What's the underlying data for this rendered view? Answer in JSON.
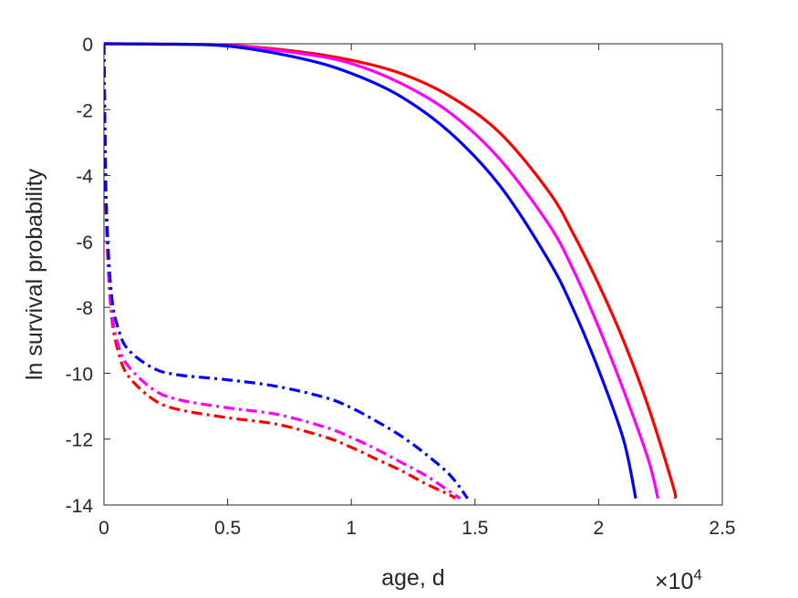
{
  "chart_data": {
    "type": "line",
    "title": "",
    "xlabel": "age, d",
    "ylabel": "ln survival probability",
    "x_exponent_label": {
      "base": "×10",
      "exponent": "4"
    },
    "xlim": [
      0,
      2.5
    ],
    "ylim": [
      -14,
      0
    ],
    "x_ticks": [
      "0",
      "0.5",
      "1",
      "1.5",
      "2",
      "2.5"
    ],
    "x_tick_values": [
      0,
      0.5,
      1,
      1.5,
      2,
      2.5
    ],
    "y_ticks": [
      "0",
      "-2",
      "-4",
      "-6",
      "-8",
      "-10",
      "-12",
      "-14"
    ],
    "y_tick_values": [
      0,
      -2,
      -4,
      -6,
      -8,
      -10,
      -12,
      -14
    ],
    "grid": false,
    "series": [
      {
        "color": "#ff0000",
        "style": "solid",
        "x": [
          0.0,
          0.2,
          0.5,
          0.8,
          1.0,
          1.2,
          1.4,
          1.6,
          1.8,
          1.9,
          2.0,
          2.1,
          2.2,
          2.3,
          2.31
        ],
        "y": [
          0.0,
          -0.01,
          -0.04,
          -0.25,
          -0.5,
          -0.9,
          -1.6,
          -2.7,
          -4.5,
          -5.8,
          -7.3,
          -9.0,
          -11.0,
          -13.4,
          -13.8
        ]
      },
      {
        "color": "#ff00ff",
        "style": "solid",
        "x": [
          0.0,
          0.2,
          0.5,
          0.8,
          1.0,
          1.2,
          1.4,
          1.6,
          1.8,
          1.9,
          2.0,
          2.1,
          2.2,
          2.24
        ],
        "y": [
          0.0,
          -0.01,
          -0.05,
          -0.3,
          -0.6,
          -1.2,
          -2.1,
          -3.5,
          -5.5,
          -6.9,
          -8.6,
          -10.5,
          -12.6,
          -13.8
        ]
      },
      {
        "color": "#0000ff",
        "style": "solid",
        "x": [
          0.0,
          0.2,
          0.5,
          0.8,
          1.0,
          1.2,
          1.4,
          1.6,
          1.8,
          1.9,
          2.0,
          2.1,
          2.15
        ],
        "y": [
          0.0,
          -0.01,
          -0.07,
          -0.45,
          -0.9,
          -1.6,
          -2.7,
          -4.3,
          -6.6,
          -8.1,
          -9.9,
          -12.0,
          -13.8
        ]
      },
      {
        "color": "#ff0000",
        "style": "dashdot",
        "x": [
          0.0,
          0.002,
          0.01,
          0.03,
          0.06,
          0.1,
          0.2,
          0.3,
          0.5,
          0.7,
          0.9,
          1.0,
          1.1,
          1.2,
          1.3,
          1.4,
          1.42
        ],
        "y": [
          0.0,
          -1.5,
          -5.5,
          -8.2,
          -9.4,
          -10.1,
          -10.8,
          -11.1,
          -11.35,
          -11.55,
          -11.95,
          -12.25,
          -12.6,
          -12.95,
          -13.35,
          -13.7,
          -13.8
        ]
      },
      {
        "color": "#ff00ff",
        "style": "dashdot",
        "x": [
          0.0,
          0.002,
          0.01,
          0.03,
          0.06,
          0.1,
          0.2,
          0.3,
          0.5,
          0.7,
          0.9,
          1.0,
          1.1,
          1.2,
          1.3,
          1.4,
          1.44
        ],
        "y": [
          0.0,
          -1.5,
          -5.3,
          -8.0,
          -9.2,
          -9.8,
          -10.5,
          -10.8,
          -11.05,
          -11.25,
          -11.65,
          -11.95,
          -12.3,
          -12.7,
          -13.1,
          -13.6,
          -13.8
        ]
      },
      {
        "color": "#0000ff",
        "style": "dashdot",
        "x": [
          0.0,
          0.002,
          0.01,
          0.03,
          0.06,
          0.1,
          0.2,
          0.3,
          0.5,
          0.7,
          0.9,
          1.0,
          1.1,
          1.2,
          1.3,
          1.4,
          1.47
        ],
        "y": [
          0.0,
          -1.4,
          -5.0,
          -7.6,
          -8.7,
          -9.3,
          -9.85,
          -10.05,
          -10.2,
          -10.4,
          -10.75,
          -11.05,
          -11.45,
          -11.9,
          -12.45,
          -13.1,
          -13.8
        ]
      }
    ]
  }
}
